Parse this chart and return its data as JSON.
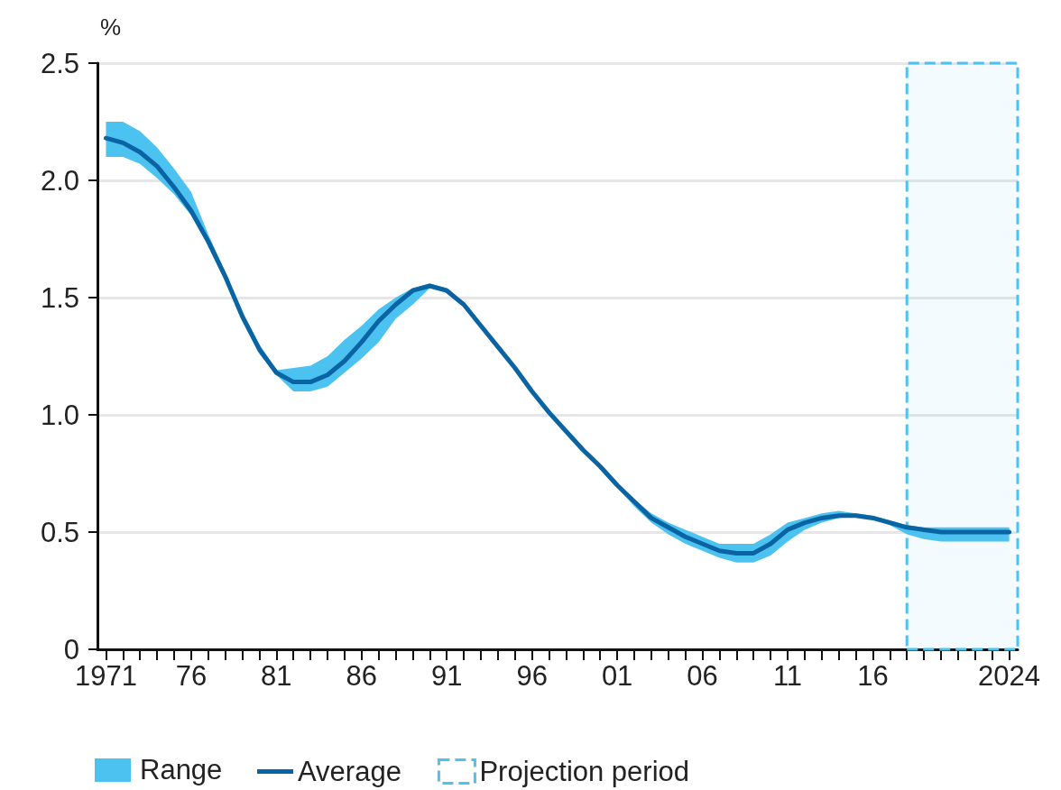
{
  "chart_data": {
    "type": "line",
    "ylabel": "%",
    "x": [
      1971,
      1972,
      1973,
      1974,
      1975,
      1976,
      1977,
      1978,
      1979,
      1980,
      1981,
      1982,
      1983,
      1984,
      1985,
      1986,
      1987,
      1988,
      1989,
      1990,
      1991,
      1992,
      1993,
      1994,
      1995,
      1996,
      1997,
      1998,
      1999,
      2000,
      2001,
      2002,
      2003,
      2004,
      2005,
      2006,
      2007,
      2008,
      2009,
      2010,
      2011,
      2012,
      2013,
      2014,
      2015,
      2016,
      2017,
      2018,
      2019,
      2020,
      2021,
      2022,
      2023,
      2024
    ],
    "series": [
      {
        "name": "Average",
        "color": "#0a64a4",
        "values": [
          2.18,
          2.16,
          2.12,
          2.06,
          1.97,
          1.87,
          1.74,
          1.59,
          1.42,
          1.28,
          1.18,
          1.14,
          1.14,
          1.17,
          1.23,
          1.31,
          1.4,
          1.47,
          1.53,
          1.55,
          1.53,
          1.47,
          1.38,
          1.29,
          1.2,
          1.1,
          1.01,
          0.93,
          0.85,
          0.78,
          0.7,
          0.63,
          0.56,
          0.52,
          0.48,
          0.45,
          0.42,
          0.41,
          0.41,
          0.45,
          0.51,
          0.54,
          0.56,
          0.57,
          0.57,
          0.56,
          0.54,
          0.52,
          0.51,
          0.5,
          0.5,
          0.5,
          0.5,
          0.5
        ],
        "lower": [
          2.1,
          2.1,
          2.07,
          2.01,
          1.94,
          1.85,
          1.72,
          1.57,
          1.4,
          1.26,
          1.17,
          1.1,
          1.1,
          1.12,
          1.18,
          1.24,
          1.31,
          1.41,
          1.47,
          1.54,
          1.52,
          1.46,
          1.37,
          1.28,
          1.19,
          1.09,
          1.0,
          0.92,
          0.84,
          0.77,
          0.69,
          0.61,
          0.54,
          0.49,
          0.45,
          0.42,
          0.39,
          0.37,
          0.37,
          0.4,
          0.46,
          0.51,
          0.54,
          0.56,
          0.57,
          0.56,
          0.53,
          0.49,
          0.47,
          0.46,
          0.46,
          0.46,
          0.46,
          0.46
        ],
        "upper": [
          2.25,
          2.25,
          2.21,
          2.14,
          2.05,
          1.95,
          1.77,
          1.61,
          1.44,
          1.3,
          1.19,
          1.2,
          1.21,
          1.25,
          1.32,
          1.38,
          1.45,
          1.5,
          1.54,
          1.56,
          1.54,
          1.48,
          1.39,
          1.3,
          1.21,
          1.11,
          1.02,
          0.94,
          0.86,
          0.79,
          0.71,
          0.64,
          0.58,
          0.54,
          0.51,
          0.48,
          0.45,
          0.45,
          0.45,
          0.49,
          0.54,
          0.56,
          0.58,
          0.59,
          0.58,
          0.57,
          0.55,
          0.53,
          0.52,
          0.52,
          0.52,
          0.52,
          0.52,
          0.52
        ]
      }
    ],
    "annotations": [
      "Range"
    ],
    "bands": [
      {
        "axis": "x",
        "from": 2018,
        "to": 2024.5,
        "label": "Projection period",
        "color": "#4cc2f1"
      }
    ],
    "xlim": [
      1970.5,
      2024.5
    ],
    "xticks": [
      {
        "value": 1971,
        "label": "1971"
      },
      {
        "value": 1972,
        "label": null
      },
      {
        "value": 1973,
        "label": null
      },
      {
        "value": 1974,
        "label": null
      },
      {
        "value": 1975,
        "label": null
      },
      {
        "value": 1976,
        "label": "76"
      },
      {
        "value": 1977,
        "label": null
      },
      {
        "value": 1978,
        "label": null
      },
      {
        "value": 1979,
        "label": null
      },
      {
        "value": 1980,
        "label": null
      },
      {
        "value": 1981,
        "label": "81"
      },
      {
        "value": 1982,
        "label": null
      },
      {
        "value": 1983,
        "label": null
      },
      {
        "value": 1984,
        "label": null
      },
      {
        "value": 1985,
        "label": null
      },
      {
        "value": 1986,
        "label": "86"
      },
      {
        "value": 1987,
        "label": null
      },
      {
        "value": 1988,
        "label": null
      },
      {
        "value": 1989,
        "label": null
      },
      {
        "value": 1990,
        "label": null
      },
      {
        "value": 1991,
        "label": "91"
      },
      {
        "value": 1992,
        "label": null
      },
      {
        "value": 1993,
        "label": null
      },
      {
        "value": 1994,
        "label": null
      },
      {
        "value": 1995,
        "label": null
      },
      {
        "value": 1996,
        "label": "96"
      },
      {
        "value": 1997,
        "label": null
      },
      {
        "value": 1998,
        "label": null
      },
      {
        "value": 1999,
        "label": null
      },
      {
        "value": 2000,
        "label": null
      },
      {
        "value": 2001,
        "label": "01"
      },
      {
        "value": 2002,
        "label": null
      },
      {
        "value": 2003,
        "label": null
      },
      {
        "value": 2004,
        "label": null
      },
      {
        "value": 2005,
        "label": null
      },
      {
        "value": 2006,
        "label": "06"
      },
      {
        "value": 2007,
        "label": null
      },
      {
        "value": 2008,
        "label": null
      },
      {
        "value": 2009,
        "label": null
      },
      {
        "value": 2010,
        "label": null
      },
      {
        "value": 2011,
        "label": "11"
      },
      {
        "value": 2012,
        "label": null
      },
      {
        "value": 2013,
        "label": null
      },
      {
        "value": 2014,
        "label": null
      },
      {
        "value": 2015,
        "label": null
      },
      {
        "value": 2016,
        "label": "16"
      },
      {
        "value": 2017,
        "label": null
      },
      {
        "value": 2018,
        "label": null
      },
      {
        "value": 2019,
        "label": null
      },
      {
        "value": 2020,
        "label": null
      },
      {
        "value": 2021,
        "label": null
      },
      {
        "value": 2022,
        "label": null
      },
      {
        "value": 2023,
        "label": null
      },
      {
        "value": 2024,
        "label": "2024"
      }
    ],
    "ylim": [
      0,
      2.5
    ],
    "yticks": [
      0,
      0.5,
      {
        "value": 1,
        "label": "1.0"
      },
      1.5,
      {
        "value": 2,
        "label": "2.0"
      },
      2.5
    ],
    "grid": "y",
    "legend": "bottom",
    "marker": "none",
    "line_style": "solid"
  }
}
